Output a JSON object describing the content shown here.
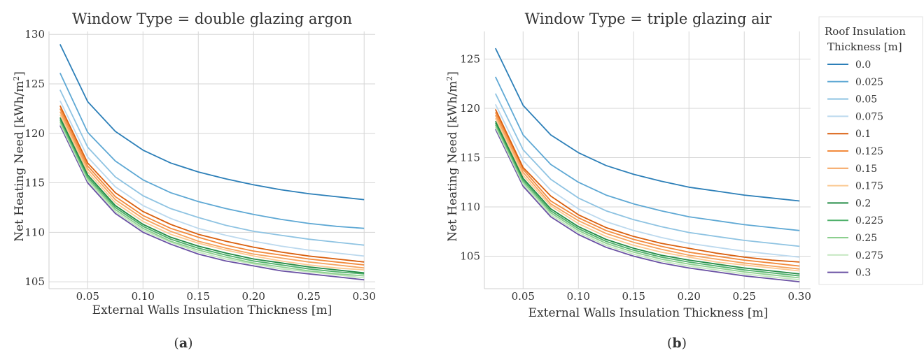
{
  "panels": [
    {
      "caption_open": "(",
      "caption_letter": "a",
      "caption_close": ")"
    },
    {
      "caption_open": "(",
      "caption_letter": "b",
      "caption_close": ")"
    }
  ],
  "legend": {
    "title_line1": "Roof Insulation",
    "title_line2": "Thickness [m]"
  },
  "chart_data": [
    {
      "type": "line",
      "title": "Window Type = double glazing argon",
      "xlabel": "External Walls Insulation Thickness [m]",
      "ylabel": "Net Heating Need [kWh/m²]",
      "ylabel_main": "Net Heating Need [kWh/m",
      "ylabel_sup": "2",
      "ylabel_end": "]",
      "xlim": [
        0.015,
        0.31
      ],
      "ylim": [
        104.3,
        130.3
      ],
      "xticks": [
        0.05,
        0.1,
        0.15,
        0.2,
        0.25,
        0.3
      ],
      "xtick_labels": [
        "0.05",
        "0.10",
        "0.15",
        "0.20",
        "0.25",
        "0.30"
      ],
      "yticks": [
        105,
        110,
        115,
        120,
        125,
        130
      ],
      "ytick_labels": [
        "105",
        "110",
        "115",
        "120",
        "125",
        "130"
      ],
      "grid": true,
      "x": [
        0.025,
        0.05,
        0.075,
        0.1,
        0.125,
        0.15,
        0.175,
        0.2,
        0.225,
        0.25,
        0.275,
        0.3
      ],
      "series": [
        {
          "name": "0.0",
          "color": "#2c7fb8",
          "values": [
            129.0,
            123.2,
            120.2,
            118.3,
            117.0,
            116.1,
            115.4,
            114.8,
            114.3,
            113.9,
            113.6,
            113.3
          ]
        },
        {
          "name": "0.025",
          "color": "#5ea8d4",
          "values": [
            126.1,
            120.1,
            117.2,
            115.3,
            114.0,
            113.1,
            112.4,
            111.8,
            111.3,
            110.9,
            110.6,
            110.4
          ]
        },
        {
          "name": "0.05",
          "color": "#8ec3e2",
          "values": [
            124.4,
            118.6,
            115.6,
            113.7,
            112.4,
            111.5,
            110.7,
            110.1,
            109.7,
            109.3,
            109.0,
            108.7
          ]
        },
        {
          "name": "0.075",
          "color": "#bcd9ee",
          "values": [
            123.3,
            117.6,
            114.6,
            112.7,
            111.4,
            110.4,
            109.7,
            109.1,
            108.6,
            108.2,
            107.9,
            107.6
          ]
        },
        {
          "name": "0.1",
          "color": "#d95f0e",
          "values": [
            122.8,
            117.0,
            114.0,
            112.1,
            110.8,
            109.8,
            109.1,
            108.5,
            108.0,
            107.6,
            107.3,
            107.0
          ]
        },
        {
          "name": "0.125",
          "color": "#f28a3c",
          "values": [
            122.5,
            116.7,
            113.6,
            111.7,
            110.4,
            109.5,
            108.7,
            108.1,
            107.7,
            107.3,
            107.0,
            106.7
          ]
        },
        {
          "name": "0.15",
          "color": "#f6a45f",
          "values": [
            122.2,
            116.4,
            113.3,
            111.4,
            110.1,
            109.1,
            108.4,
            107.8,
            107.4,
            107.0,
            106.7,
            106.4
          ]
        },
        {
          "name": "0.175",
          "color": "#fbc992",
          "values": [
            121.9,
            116.1,
            113.0,
            111.1,
            109.8,
            108.9,
            108.2,
            107.6,
            107.1,
            106.7,
            106.4,
            106.2
          ]
        },
        {
          "name": "0.2",
          "color": "#238b45",
          "values": [
            121.6,
            115.8,
            112.7,
            110.8,
            109.5,
            108.6,
            107.9,
            107.3,
            106.9,
            106.5,
            106.2,
            105.9
          ]
        },
        {
          "name": "0.225",
          "color": "#4fb06a",
          "values": [
            121.4,
            115.6,
            112.5,
            110.6,
            109.3,
            108.4,
            107.7,
            107.1,
            106.7,
            106.3,
            106.0,
            105.8
          ]
        },
        {
          "name": "0.25",
          "color": "#8ccf8e",
          "values": [
            121.2,
            115.4,
            112.3,
            110.4,
            109.1,
            108.2,
            107.5,
            106.9,
            106.5,
            106.1,
            105.8,
            105.6
          ]
        },
        {
          "name": "0.275",
          "color": "#c3e7bf",
          "values": [
            121.0,
            115.2,
            112.1,
            110.2,
            109.0,
            108.0,
            107.3,
            106.8,
            106.3,
            106.0,
            105.7,
            105.4
          ]
        },
        {
          "name": "0.3",
          "color": "#6a51a3",
          "values": [
            120.8,
            115.0,
            111.9,
            110.0,
            108.8,
            107.8,
            107.1,
            106.6,
            106.1,
            105.8,
            105.5,
            105.2
          ]
        }
      ]
    },
    {
      "type": "line",
      "title": "Window Type = triple glazing air",
      "xlabel": "External Walls Insulation Thickness [m]",
      "ylabel": "Net Heating Need [kWh/m²]",
      "ylabel_main": "Net Heating Need [kWh/m",
      "ylabel_sup": "2",
      "ylabel_end": "]",
      "xlim": [
        0.015,
        0.31
      ],
      "ylim": [
        101.7,
        127.8
      ],
      "xticks": [
        0.05,
        0.1,
        0.15,
        0.2,
        0.25,
        0.3
      ],
      "xtick_labels": [
        "0.05",
        "0.10",
        "0.15",
        "0.20",
        "0.25",
        "0.30"
      ],
      "yticks": [
        105,
        110,
        115,
        120,
        125
      ],
      "ytick_labels": [
        "105",
        "110",
        "115",
        "120",
        "125"
      ],
      "grid": true,
      "x": [
        0.025,
        0.05,
        0.075,
        0.1,
        0.125,
        0.15,
        0.175,
        0.2,
        0.225,
        0.25,
        0.275,
        0.3
      ],
      "series": [
        {
          "name": "0.0",
          "color": "#2c7fb8",
          "values": [
            126.1,
            120.3,
            117.3,
            115.5,
            114.2,
            113.3,
            112.6,
            112.0,
            111.6,
            111.2,
            110.9,
            110.6
          ]
        },
        {
          "name": "0.025",
          "color": "#5ea8d4",
          "values": [
            123.2,
            117.3,
            114.3,
            112.5,
            111.2,
            110.3,
            109.6,
            109.0,
            108.6,
            108.2,
            107.9,
            107.6
          ]
        },
        {
          "name": "0.05",
          "color": "#8ec3e2",
          "values": [
            121.5,
            115.8,
            112.8,
            110.9,
            109.6,
            108.7,
            108.0,
            107.4,
            107.0,
            106.6,
            106.3,
            106.0
          ]
        },
        {
          "name": "0.075",
          "color": "#bcd9ee",
          "values": [
            120.4,
            114.7,
            111.7,
            109.8,
            108.5,
            107.6,
            106.9,
            106.3,
            105.9,
            105.5,
            105.2,
            104.9
          ]
        },
        {
          "name": "0.1",
          "color": "#d95f0e",
          "values": [
            119.9,
            114.0,
            111.1,
            109.2,
            107.9,
            107.0,
            106.3,
            105.8,
            105.3,
            104.9,
            104.6,
            104.4
          ]
        },
        {
          "name": "0.125",
          "color": "#f28a3c",
          "values": [
            119.6,
            113.8,
            110.6,
            108.9,
            107.6,
            106.7,
            106.0,
            105.4,
            105.0,
            104.6,
            104.3,
            104.0
          ]
        },
        {
          "name": "0.15",
          "color": "#f6a45f",
          "values": [
            119.3,
            113.5,
            110.3,
            108.6,
            107.3,
            106.4,
            105.7,
            105.1,
            104.7,
            104.3,
            104.0,
            103.7
          ]
        },
        {
          "name": "0.175",
          "color": "#fbc992",
          "values": [
            119.0,
            113.2,
            110.1,
            108.3,
            107.0,
            106.1,
            105.4,
            104.9,
            104.4,
            104.1,
            103.8,
            103.5
          ]
        },
        {
          "name": "0.2",
          "color": "#238b45",
          "values": [
            118.7,
            112.9,
            109.8,
            108.0,
            106.7,
            105.8,
            105.1,
            104.6,
            104.2,
            103.8,
            103.5,
            103.2
          ]
        },
        {
          "name": "0.225",
          "color": "#4fb06a",
          "values": [
            118.5,
            112.7,
            109.6,
            107.8,
            106.5,
            105.6,
            104.9,
            104.4,
            104.0,
            103.6,
            103.3,
            103.0
          ]
        },
        {
          "name": "0.25",
          "color": "#8ccf8e",
          "values": [
            118.3,
            112.5,
            109.4,
            107.6,
            106.3,
            105.4,
            104.7,
            104.2,
            103.8,
            103.4,
            103.1,
            102.8
          ]
        },
        {
          "name": "0.275",
          "color": "#c3e7bf",
          "values": [
            118.1,
            112.3,
            109.2,
            107.4,
            106.1,
            105.2,
            104.5,
            104.0,
            103.6,
            103.2,
            102.9,
            102.6
          ]
        },
        {
          "name": "0.3",
          "color": "#6a51a3",
          "values": [
            117.9,
            112.1,
            109.0,
            107.2,
            105.9,
            105.0,
            104.3,
            103.8,
            103.4,
            103.0,
            102.7,
            102.4
          ]
        }
      ]
    }
  ]
}
